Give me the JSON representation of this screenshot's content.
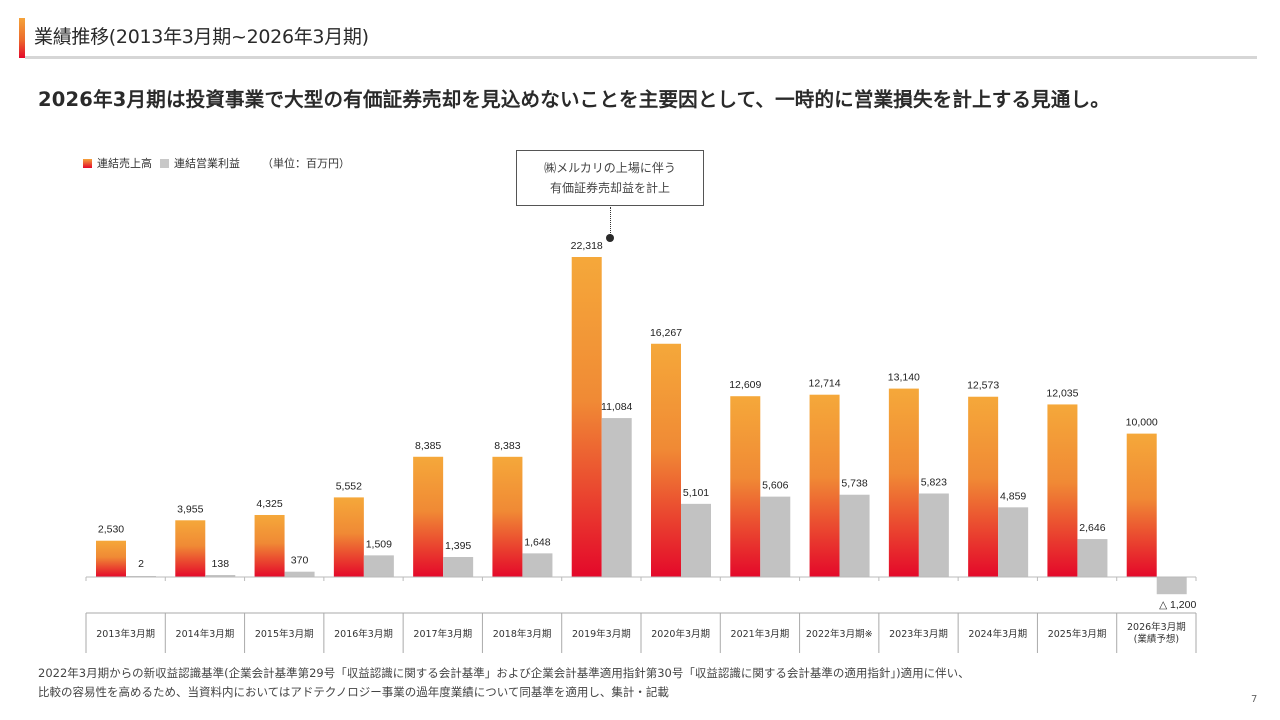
{
  "header": {
    "title": "業績推移(2013年3月期~2026年3月期)",
    "headline": "2026年3月期は投資事業で大型の有価証券売却を見込めないことを主要因として、一時的に営業損失を計上する見通し。"
  },
  "legend": {
    "revenue_label": "連結売上高",
    "profit_label": "連結営業利益",
    "unit": "（単位：百万円）"
  },
  "callout": {
    "line1": "㈱メルカリの上場に伴う",
    "line2": "有価証券売却益を計上"
  },
  "colors": {
    "revenue_top": "#f5a83a",
    "revenue_bottom": "#e4082a",
    "profit": "#c2c2c2",
    "accent": "#e4082a"
  },
  "chart_data": {
    "type": "bar",
    "title": "業績推移(2013年3月期~2026年3月期)",
    "xlabel": "",
    "ylabel": "",
    "unit": "百万円",
    "categories": [
      "2013年3月期",
      "2014年3月期",
      "2015年3月期",
      "2016年3月期",
      "2017年3月期",
      "2018年3月期",
      "2019年3月期",
      "2020年3月期",
      "2021年3月期",
      "2022年3月期※",
      "2023年3月期",
      "2024年3月期",
      "2025年3月期",
      "2026年3月期\n(業績予想)"
    ],
    "series": [
      {
        "name": "連結売上高",
        "values": [
          2530,
          3955,
          4325,
          5552,
          8385,
          8383,
          22318,
          16267,
          12609,
          12714,
          13140,
          12573,
          12035,
          10000
        ],
        "labels": [
          "2,530",
          "3,955",
          "4,325",
          "5,552",
          "8,385",
          "8,383",
          "22,318",
          "16,267",
          "12,609",
          "12,714",
          "13,140",
          "12,573",
          "12,035",
          "10,000"
        ]
      },
      {
        "name": "連結営業利益",
        "values": [
          2,
          138,
          370,
          1509,
          1395,
          1648,
          11084,
          5101,
          5606,
          5738,
          5823,
          4859,
          2646,
          -1200
        ],
        "labels": [
          "2",
          "138",
          "370",
          "1,509",
          "1,395",
          "1,648",
          "11,084",
          "5,101",
          "5,606",
          "5,738",
          "5,823",
          "4,859",
          "2,646",
          "△ 1,200"
        ]
      }
    ],
    "ylim": [
      -1200,
      22318
    ],
    "grid": false,
    "legend": "top-left",
    "annotation": "㈱メルカリの上場に伴う有価証券売却益を計上 (2019年3月期)"
  },
  "footnote": {
    "line1": "2022年3月期からの新収益認識基準(企業会計基準第29号「収益認識に関する会計基準」および企業会計基準適用指針第30号「収益認識に関する会計基準の適用指針」)適用に伴い、",
    "line2": "比較の容易性を高めるため、当資料内においてはアドテクノロジー事業の過年度業績について同基準を適用し、集計・記載"
  },
  "page_number": "7"
}
